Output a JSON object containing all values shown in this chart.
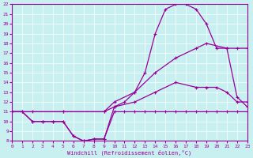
{
  "xlabel": "Windchill (Refroidissement éolien,°C)",
  "bg_color": "#c8f0f0",
  "line_color": "#990099",
  "grid_color": "#ffffff",
  "xmin": 0,
  "xmax": 23,
  "ymin": 8,
  "ymax": 22,
  "yticks": [
    8,
    9,
    10,
    11,
    12,
    13,
    14,
    15,
    16,
    17,
    18,
    19,
    20,
    21,
    22
  ],
  "xticks": [
    0,
    1,
    2,
    3,
    4,
    5,
    6,
    7,
    8,
    9,
    10,
    11,
    12,
    13,
    14,
    15,
    16,
    17,
    18,
    19,
    20,
    21,
    22,
    23
  ],
  "line1_x": [
    0,
    1,
    2,
    3,
    4,
    5,
    6,
    7,
    8,
    9,
    10,
    11,
    12,
    13,
    14,
    15,
    16,
    17,
    18,
    19,
    20,
    21,
    22,
    23
  ],
  "line1_y": [
    11,
    11,
    10,
    10,
    10,
    10,
    8.5,
    8.0,
    8.2,
    8.2,
    11,
    11,
    11,
    11,
    11,
    11,
    11,
    11,
    11,
    11,
    11,
    11,
    11,
    11
  ],
  "line2_x": [
    0,
    1,
    2,
    3,
    4,
    5,
    6,
    7,
    8,
    9,
    10,
    11,
    12,
    13,
    14,
    15,
    16,
    17,
    18,
    19,
    20,
    21,
    22,
    23
  ],
  "line2_y": [
    11,
    11,
    10,
    10,
    10,
    10,
    8.5,
    8.0,
    8.2,
    8.2,
    11.5,
    12.0,
    13.0,
    15.0,
    19.0,
    21.5,
    22.0,
    22.0,
    21.5,
    20.0,
    17.5,
    17.5,
    17.5,
    17.5
  ],
  "line3_x": [
    0,
    2,
    5,
    9,
    10,
    12,
    14,
    16,
    18,
    19,
    21,
    22,
    23
  ],
  "line3_y": [
    11,
    11,
    11,
    11,
    12,
    13,
    15,
    16.5,
    17.5,
    18.0,
    17.5,
    12.5,
    11.5
  ],
  "line4_x": [
    0,
    5,
    9,
    10,
    12,
    14,
    16,
    18,
    19,
    20,
    21,
    22,
    23
  ],
  "line4_y": [
    11,
    11,
    11,
    11.5,
    12,
    13,
    14,
    13.5,
    13.5,
    13.5,
    13.0,
    12.0,
    12.0
  ]
}
